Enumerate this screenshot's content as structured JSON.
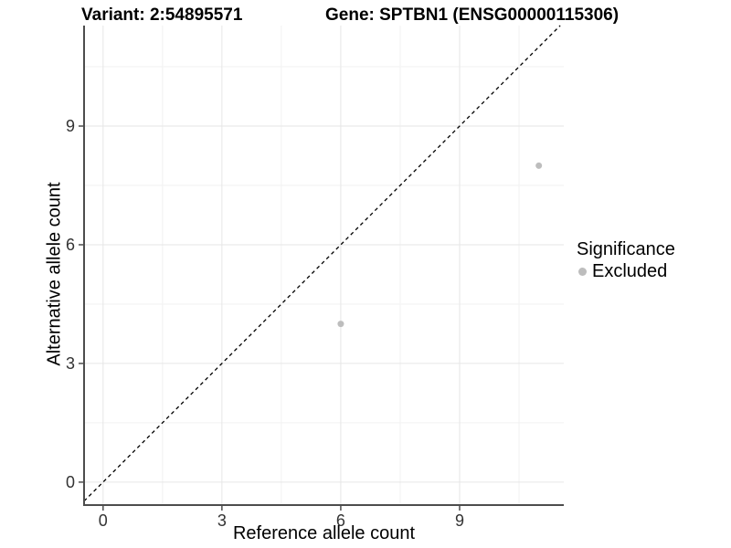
{
  "chart_data": {
    "type": "scatter",
    "titles": {
      "left": "Variant: 2:54895571",
      "right": "Gene: SPTBN1 (ENSG00000115306)"
    },
    "xlabel": "Reference allele count",
    "ylabel": "Alternative allele count",
    "x_ticks": [
      0,
      3,
      6,
      9
    ],
    "y_ticks": [
      0,
      3,
      6,
      9
    ],
    "x_minor_ticks": [
      1.5,
      4.5,
      7.5,
      10.5
    ],
    "y_minor_ticks": [
      1.5,
      4.5,
      7.5,
      10.5
    ],
    "xlim": [
      -0.48,
      11.63
    ],
    "ylim": [
      -0.58,
      11.54
    ],
    "grid": true,
    "points": [
      {
        "x": 6,
        "y": 4,
        "significance": "Excluded"
      },
      {
        "x": 11,
        "y": 8,
        "significance": "Excluded"
      }
    ],
    "reference_line": {
      "type": "identity",
      "slope": 1,
      "intercept": 0,
      "style": "dashed",
      "color": "#000000"
    },
    "legend": {
      "title": "Significance",
      "position": "right",
      "entries": [
        {
          "label": "Excluded",
          "color": "#bdbdbd"
        }
      ]
    },
    "colors": {
      "point": "#bdbdbd",
      "grid_major": "#e6e6e6",
      "grid_minor": "#f2f2f2",
      "axis_line": "#4d4d4d",
      "tick_label": "#333333"
    }
  }
}
